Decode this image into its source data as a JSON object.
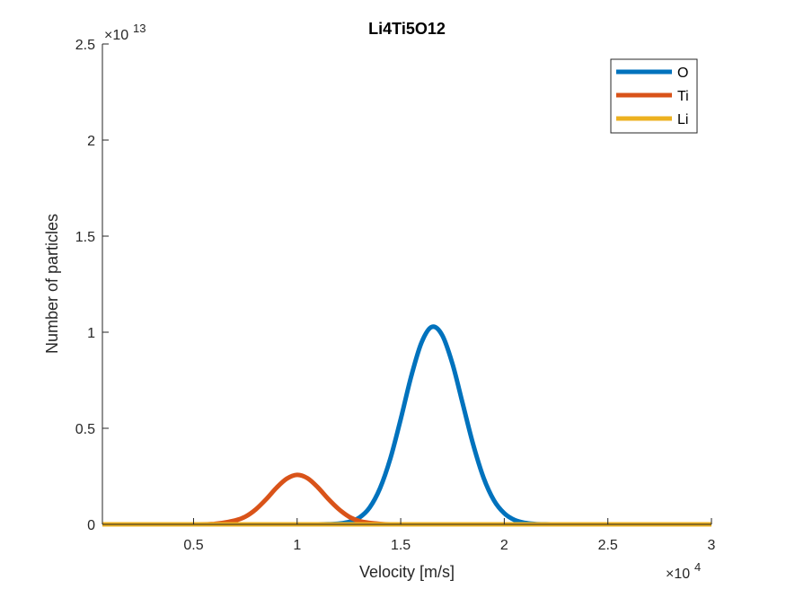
{
  "chart_data": {
    "type": "line",
    "title": "Li4Ti5O12",
    "xlabel": "Velocity [m/s]",
    "ylabel": "Number of particles",
    "x_exponent_label": "×10",
    "x_exponent": "4",
    "y_exponent_label": "×10",
    "y_exponent": "13",
    "xlim": [
      600,
      30000
    ],
    "ylim": [
      0,
      25000000000000
    ],
    "xticks": [
      5000,
      10000,
      15000,
      20000,
      25000,
      30000
    ],
    "xtick_labels": [
      "0.5",
      "1",
      "1.5",
      "2",
      "2.5",
      "3"
    ],
    "yticks": [
      0,
      5000000000000,
      10000000000000,
      15000000000000,
      20000000000000,
      25000000000000
    ],
    "ytick_labels": [
      "0",
      "0.5",
      "1",
      "1.5",
      "2",
      "2.5"
    ],
    "grid": false,
    "legend_position": "top-right",
    "x": [
      600,
      2000,
      3000,
      4000,
      5000,
      6000,
      7000,
      7500,
      8000,
      8500,
      9000,
      9500,
      10000,
      10500,
      11000,
      11500,
      12000,
      12500,
      13000,
      13500,
      14000,
      14500,
      15000,
      15500,
      16000,
      16500,
      17000,
      17500,
      18000,
      18500,
      19000,
      19500,
      20000,
      20500,
      21000,
      21500,
      22000,
      22500,
      23000,
      23500,
      24000,
      24500,
      25000,
      25500,
      26000,
      26500,
      27000,
      27500,
      28000,
      28500,
      29000,
      29500,
      30000
    ],
    "series": [
      {
        "name": "O",
        "color": "#0072BD",
        "values": [
          0,
          0,
          0,
          0,
          0,
          0,
          0,
          0,
          0,
          0,
          0,
          0,
          0,
          0,
          0,
          0.0004,
          0.0015,
          0.005,
          0.014,
          0.035,
          0.075,
          0.137,
          0.219,
          0.307,
          0.378,
          0.411,
          0.394,
          0.334,
          0.25,
          0.166,
          0.097,
          0.05,
          0.023,
          0.009,
          0.003,
          0.0008,
          0.0002,
          0,
          0,
          0,
          0,
          0,
          0,
          0,
          0,
          0,
          0,
          0,
          0,
          0,
          0,
          0,
          0
        ]
      },
      {
        "name": "Ti",
        "color": "#D95319",
        "values": [
          0,
          0,
          0,
          0,
          0,
          0.001,
          0.008,
          0.016,
          0.031,
          0.052,
          0.076,
          0.095,
          0.103,
          0.096,
          0.077,
          0.053,
          0.032,
          0.016,
          0.007,
          0.003,
          0.001,
          0,
          0,
          0,
          0,
          0,
          0,
          0,
          0,
          0,
          0,
          0,
          0,
          0,
          0,
          0,
          0,
          0,
          0,
          0,
          0,
          0,
          0,
          0,
          0,
          0,
          0,
          0,
          0,
          0,
          0,
          0,
          0
        ]
      },
      {
        "name": "Li",
        "color": "#EDB120",
        "values": [
          0,
          0,
          0,
          0,
          0,
          0,
          0,
          0,
          0,
          0,
          0,
          0,
          0,
          0,
          0,
          0,
          0,
          0,
          0,
          0,
          0,
          0,
          0,
          0,
          0,
          0,
          0,
          0,
          0,
          0,
          0,
          0,
          0,
          0,
          0,
          0,
          0,
          0,
          0,
          0,
          0,
          0,
          0,
          0,
          0,
          0,
          0,
          0,
          0,
          0,
          0,
          0,
          0
        ]
      }
    ]
  }
}
